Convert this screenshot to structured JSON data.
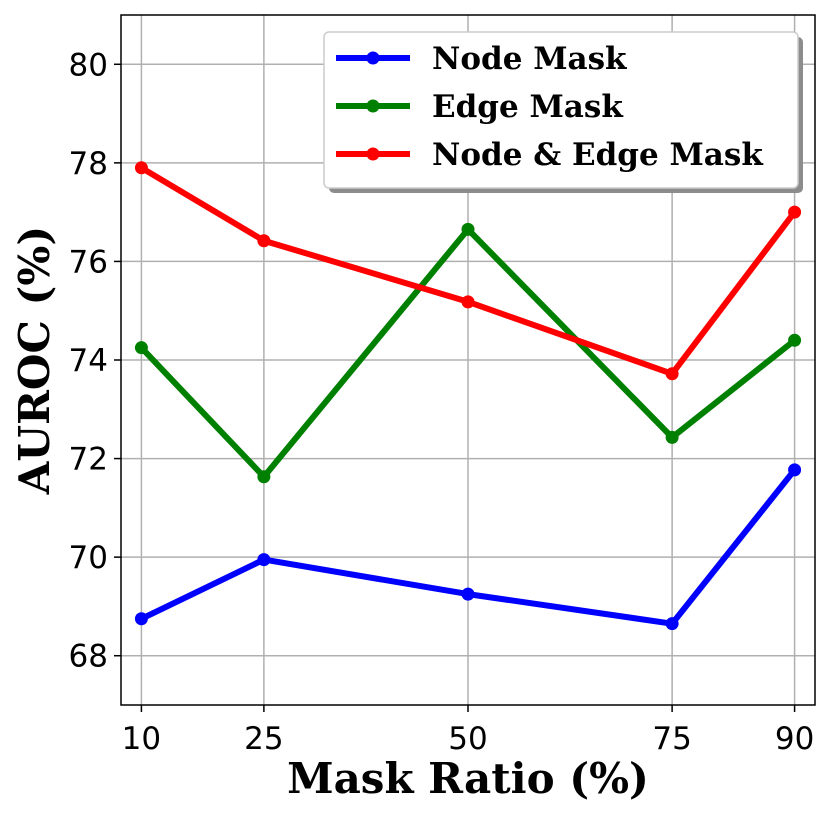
{
  "chart_data": {
    "type": "line",
    "title": "",
    "xlabel": "Mask Ratio (%)",
    "ylabel": "AUROC (%)",
    "x": [
      10,
      25,
      50,
      75,
      90
    ],
    "xticks": [
      "10",
      "25",
      "50",
      "75",
      "90"
    ],
    "yticks": [
      "68",
      "70",
      "72",
      "74",
      "76",
      "78",
      "80"
    ],
    "ylim": [
      67,
      81
    ],
    "grid": true,
    "legend_position": "top-right",
    "series": [
      {
        "name": "Node Mask",
        "color": "#0000ff",
        "values": [
          68.75,
          69.95,
          69.25,
          68.65,
          71.77
        ]
      },
      {
        "name": "Edge Mask",
        "color": "#008000",
        "values": [
          74.25,
          71.63,
          76.65,
          72.43,
          74.4
        ]
      },
      {
        "name": "Node & Edge Mask",
        "color": "#ff0000",
        "values": [
          77.9,
          76.42,
          75.18,
          73.72,
          77.0
        ]
      }
    ]
  }
}
